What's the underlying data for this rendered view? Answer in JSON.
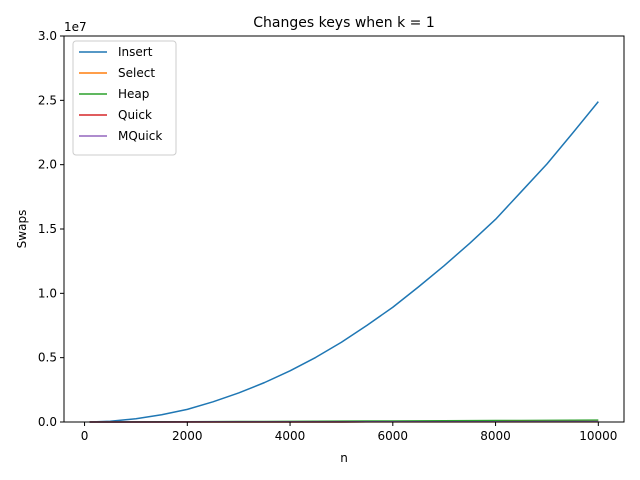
{
  "chart_data": {
    "type": "line",
    "title": "Changes keys when k = 1",
    "xlabel": "n",
    "ylabel": "Swaps",
    "y_offset_text": "1e7",
    "xlim": [
      -400,
      10500
    ],
    "ylim": [
      0,
      30000000
    ],
    "x_ticks": [
      0,
      2000,
      4000,
      6000,
      8000,
      10000
    ],
    "x_tick_labels": [
      "0",
      "2000",
      "4000",
      "6000",
      "8000",
      "10000"
    ],
    "y_ticks": [
      0,
      5000000,
      10000000,
      15000000,
      20000000,
      25000000,
      30000000
    ],
    "y_tick_labels": [
      "0.0",
      "0.5",
      "1.0",
      "1.5",
      "2.0",
      "2.5",
      "3.0"
    ],
    "grid": false,
    "legend_placement": "top-left",
    "x": [
      100,
      500,
      1000,
      1500,
      2000,
      2500,
      3000,
      3500,
      4000,
      4500,
      5000,
      5500,
      6000,
      6500,
      7000,
      7500,
      8000,
      8500,
      9000,
      9500,
      10000
    ],
    "series": [
      {
        "name": "Insert",
        "color": "#1f77b4",
        "values": [
          2500,
          62000,
          250000,
          560000,
          980000,
          1570000,
          2260000,
          3060000,
          3980000,
          5020000,
          6200000,
          7520000,
          8920000,
          10500000,
          12150000,
          13900000,
          15750000,
          17900000,
          20050000,
          22450000,
          24900000
        ]
      },
      {
        "name": "Select",
        "color": "#ff7f0e",
        "values": [
          99,
          499,
          999,
          1499,
          1999,
          2499,
          2999,
          3499,
          3999,
          4499,
          4999,
          5499,
          5999,
          6499,
          6999,
          7499,
          7999,
          8499,
          8999,
          9499,
          9999
        ]
      },
      {
        "name": "Heap",
        "color": "#2ca02c",
        "values": [
          600,
          4400,
          10000,
          16500,
          23000,
          29800,
          36800,
          43800,
          51000,
          58500,
          66000,
          73500,
          81000,
          88500,
          96500,
          104000,
          112000,
          120000,
          128000,
          136000,
          144000
        ]
      },
      {
        "name": "Quick",
        "color": "#d62728",
        "values": [
          200,
          1100,
          2400,
          3800,
          5200,
          6700,
          8200,
          9700,
          11200,
          12700,
          14300,
          15900,
          17500,
          19100,
          20700,
          22300,
          23900,
          25500,
          27100,
          28700,
          30300
        ]
      },
      {
        "name": "MQuick",
        "color": "#9467bd",
        "values": [
          180,
          1000,
          2200,
          3500,
          4800,
          6200,
          7600,
          9000,
          10400,
          11800,
          13300,
          14800,
          16300,
          17800,
          19300,
          20800,
          22300,
          23800,
          25300,
          26800,
          28300
        ]
      }
    ]
  }
}
